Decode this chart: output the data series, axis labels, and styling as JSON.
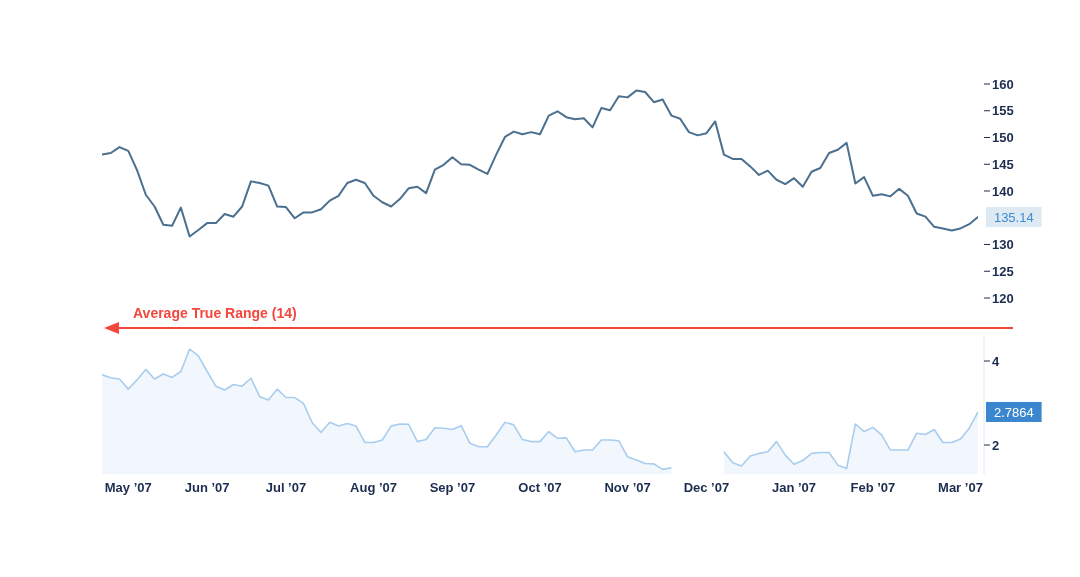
{
  "chart_data": [
    {
      "type": "line",
      "categories": [
        null,
        null,
        null,
        null,
        null,
        null,
        null,
        null,
        null,
        null,
        null,
        null,
        null,
        null,
        null,
        null,
        null,
        null,
        null,
        null,
        null,
        null,
        null,
        null,
        null,
        null,
        null,
        null,
        null,
        null,
        null,
        null,
        null,
        null,
        null,
        null,
        null,
        null,
        null,
        null,
        null,
        null,
        null,
        null,
        null,
        null,
        null,
        null,
        null,
        null,
        null,
        null,
        null,
        null,
        null,
        null,
        null,
        null,
        null,
        null,
        null,
        null,
        null,
        null,
        null,
        null,
        null,
        null,
        null,
        null,
        null,
        null,
        null,
        null,
        null,
        null,
        null,
        null,
        null,
        null,
        null,
        null,
        null,
        null,
        null,
        null,
        null,
        null,
        null,
        null,
        null,
        null,
        null,
        null,
        null,
        null,
        null,
        null,
        null,
        null,
        null
      ],
      "values": [
        146.8,
        147.1,
        148.2,
        147.5,
        143.9,
        139.3,
        137.1,
        133.7,
        133.5,
        136.9,
        131.5,
        132.7,
        134.0,
        134.0,
        135.7,
        135.2,
        137.1,
        141.8,
        141.5,
        141.0,
        137.1,
        137.0,
        134.9,
        136.0,
        136.0,
        136.6,
        138.2,
        139.1,
        141.5,
        142.1,
        141.5,
        139.1,
        137.9,
        137.1,
        138.5,
        140.5,
        140.8,
        139.6,
        144.0,
        144.9,
        146.3,
        145.0,
        144.9,
        144.0,
        143.2,
        146.8,
        150.1,
        151.1,
        150.6,
        151.0,
        150.6,
        154.1,
        154.9,
        153.8,
        153.4,
        153.6,
        151.9,
        155.5,
        155.1,
        157.7,
        157.5,
        158.8,
        158.5,
        156.6,
        157.1,
        154.1,
        153.5,
        151.0,
        150.4,
        150.8,
        153.0,
        146.8,
        146.0,
        146.0,
        144.6,
        143.0,
        143.8,
        142.1,
        141.3,
        142.4,
        140.8,
        143.6,
        144.3,
        147.1,
        147.7,
        149.0,
        141.4,
        142.6,
        139.1,
        139.4,
        139.0,
        140.4,
        139.1,
        135.8,
        135.2,
        133.3,
        133.0,
        132.6,
        133.0,
        133.8,
        135.14
      ],
      "value_labels": [
        null,
        null,
        null,
        null,
        null,
        null,
        null,
        null,
        null,
        null,
        null,
        null,
        null,
        null,
        null,
        null,
        null,
        null,
        null,
        null,
        null,
        null,
        null,
        null,
        null,
        null,
        null,
        null,
        null,
        null,
        null,
        null,
        null,
        null,
        null,
        null,
        null,
        null,
        null,
        null,
        null,
        null,
        null,
        null,
        null,
        null,
        null,
        null,
        null,
        null,
        null,
        null,
        null,
        null,
        null,
        null,
        null,
        null,
        null,
        null,
        null,
        null,
        null,
        null,
        null,
        null,
        null,
        null,
        null,
        null,
        null,
        null,
        null,
        null,
        null,
        null,
        null,
        null,
        null,
        null,
        null,
        null,
        null,
        null,
        null,
        null,
        null,
        null,
        null,
        null,
        null,
        null,
        null,
        null,
        null,
        null,
        null,
        null,
        null,
        null,
        "135.14"
      ],
      "color": "#4b6f8f",
      "ylim": [
        120,
        160
      ],
      "yticks": [
        120,
        125,
        130,
        140,
        145,
        150,
        155,
        160
      ],
      "tick_labels": "y"
    },
    {
      "type": "area",
      "categories": [
        null,
        null,
        null,
        "May ’07",
        null,
        null,
        null,
        null,
        null,
        null,
        null,
        null,
        "Jun ’07",
        null,
        null,
        null,
        null,
        null,
        null,
        null,
        null,
        "Jul ’07",
        null,
        null,
        null,
        null,
        null,
        null,
        null,
        null,
        null,
        "Aug ’07",
        null,
        null,
        null,
        null,
        null,
        null,
        null,
        null,
        "Sep ’07",
        null,
        null,
        null,
        null,
        null,
        null,
        null,
        null,
        null,
        "Oct ’07",
        null,
        null,
        null,
        null,
        null,
        null,
        null,
        null,
        null,
        "Nov ’07",
        null,
        null,
        null,
        null,
        null,
        null,
        null,
        null,
        "Dec ’07",
        null,
        null,
        null,
        null,
        null,
        null,
        null,
        null,
        null,
        "Jan ’07",
        null,
        null,
        null,
        null,
        null,
        null,
        null,
        null,
        "Feb ’07",
        null,
        null,
        null,
        null,
        null,
        null,
        null,
        null,
        null,
        "Mar ’07",
        null,
        null
      ],
      "values": [
        3.67,
        3.6,
        3.57,
        3.33,
        3.55,
        3.8,
        3.57,
        3.69,
        3.61,
        3.75,
        4.28,
        4.12,
        3.75,
        3.4,
        3.31,
        3.44,
        3.4,
        3.59,
        3.15,
        3.07,
        3.33,
        3.13,
        3.13,
        2.99,
        2.53,
        2.3,
        2.54,
        2.45,
        2.51,
        2.45,
        2.06,
        2.06,
        2.12,
        2.45,
        2.5,
        2.49,
        2.08,
        2.13,
        2.41,
        2.4,
        2.37,
        2.46,
        2.04,
        1.96,
        1.96,
        2.24,
        2.54,
        2.48,
        2.13,
        2.08,
        2.08,
        2.32,
        2.16,
        2.17,
        1.84,
        1.88,
        1.88,
        2.12,
        2.12,
        2.1,
        1.72,
        1.64,
        1.56,
        1.55,
        1.42,
        1.46,
        null,
        null,
        null,
        null,
        null,
        1.84,
        1.58,
        1.5,
        1.74,
        1.8,
        1.84,
        2.08,
        1.76,
        1.54,
        1.63,
        1.8,
        1.82,
        1.82,
        1.52,
        1.44,
        2.5,
        2.32,
        2.42,
        2.24,
        1.88,
        1.88,
        1.88,
        2.28,
        2.25,
        2.37,
        2.06,
        2.06,
        2.14,
        2.4,
        2.7864
      ],
      "value_labels": [
        null,
        null,
        null,
        null,
        null,
        null,
        null,
        null,
        null,
        null,
        null,
        null,
        null,
        null,
        null,
        null,
        null,
        null,
        null,
        null,
        null,
        null,
        null,
        null,
        null,
        null,
        null,
        null,
        null,
        null,
        null,
        null,
        null,
        null,
        null,
        null,
        null,
        null,
        null,
        null,
        null,
        null,
        null,
        null,
        null,
        null,
        null,
        null,
        null,
        null,
        null,
        null,
        null,
        null,
        null,
        null,
        null,
        null,
        null,
        null,
        null,
        null,
        null,
        null,
        null,
        null,
        null,
        null,
        null,
        null,
        null,
        null,
        null,
        null,
        null,
        null,
        null,
        null,
        null,
        null,
        null,
        null,
        null,
        null,
        null,
        null,
        null,
        null,
        null,
        null,
        null,
        null,
        null,
        null,
        null,
        null,
        null,
        null,
        null,
        null,
        "2.7864"
      ],
      "color": "#a9cdee",
      "ylim": [
        1.3,
        4.6
      ],
      "yticks": [
        2,
        4
      ],
      "annotations": [
        "Average True Range (14)"
      ]
    }
  ]
}
